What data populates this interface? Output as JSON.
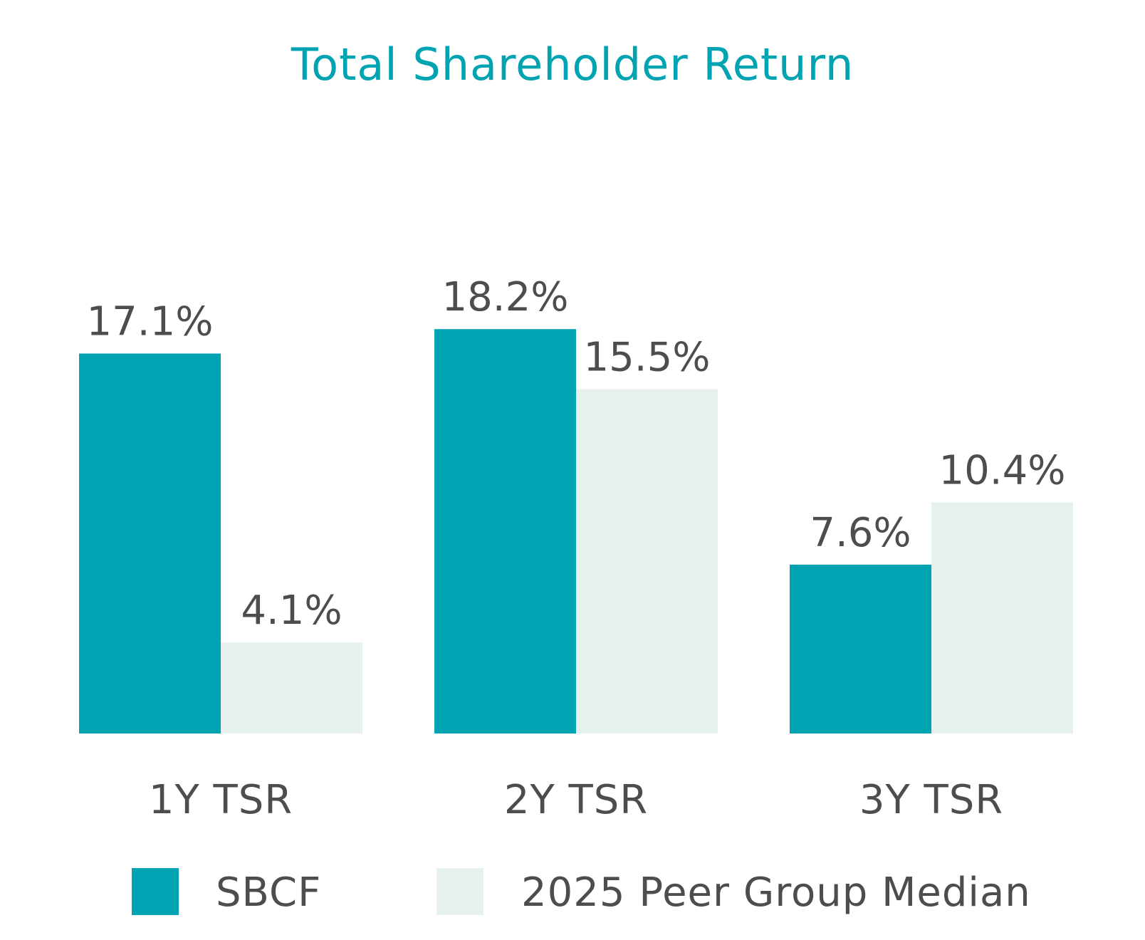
{
  "chart_data": {
    "type": "bar",
    "title": "Total Shareholder Return",
    "categories": [
      "1Y TSR",
      "2Y TSR",
      "3Y TSR"
    ],
    "series": [
      {
        "name": "SBCF",
        "values": [
          17.1,
          18.2,
          7.6
        ],
        "labels": [
          "17.1%",
          "18.2%",
          "7.6%"
        ],
        "color": "#00a3b1"
      },
      {
        "name": "2025 Peer Group Median",
        "values": [
          4.1,
          15.5,
          10.4
        ],
        "labels": [
          "4.1%",
          "15.5%",
          "10.4%"
        ],
        "color": "#e5f0ef"
      }
    ],
    "ylim": [
      0,
      20
    ],
    "xlabel": "",
    "ylabel": "",
    "grid": false,
    "legend": "bottom"
  }
}
